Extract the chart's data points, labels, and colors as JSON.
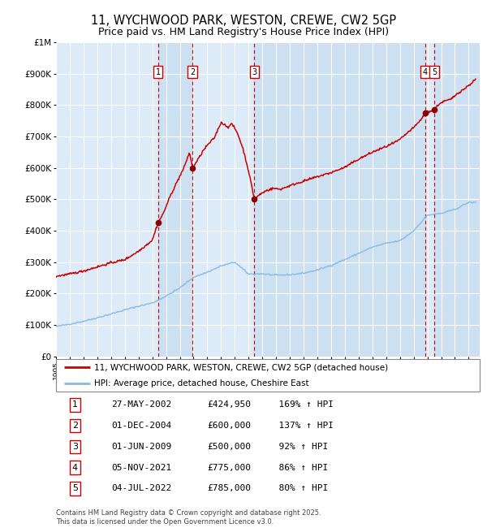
{
  "title": "11, WYCHWOOD PARK, WESTON, CREWE, CW2 5GP",
  "subtitle": "Price paid vs. HM Land Registry's House Price Index (HPI)",
  "title_fontsize": 10.5,
  "subtitle_fontsize": 9,
  "bg_color": "#ddeaf7",
  "grid_color": "#ffffff",
  "hpi_color": "#88bbdd",
  "price_color": "#cc0000",
  "sale_marker_color": "#880000",
  "xmin": 1995.0,
  "xmax": 2025.8,
  "ymin": 0,
  "ymax": 1000000,
  "yticks": [
    0,
    100000,
    200000,
    300000,
    400000,
    500000,
    600000,
    700000,
    800000,
    900000,
    1000000
  ],
  "ytick_labels": [
    "£0",
    "£100K",
    "£200K",
    "£300K",
    "£400K",
    "£500K",
    "£600K",
    "£700K",
    "£800K",
    "£900K",
    "£1M"
  ],
  "xticks": [
    1995,
    1996,
    1997,
    1998,
    1999,
    2000,
    2001,
    2002,
    2003,
    2004,
    2005,
    2006,
    2007,
    2008,
    2009,
    2010,
    2011,
    2012,
    2013,
    2014,
    2015,
    2016,
    2017,
    2018,
    2019,
    2020,
    2021,
    2022,
    2023,
    2024,
    2025
  ],
  "sale_events": [
    {
      "num": 1,
      "year": 2002.41,
      "price": 424950
    },
    {
      "num": 2,
      "year": 2004.92,
      "price": 600000
    },
    {
      "num": 3,
      "year": 2009.42,
      "price": 500000
    },
    {
      "num": 4,
      "year": 2021.85,
      "price": 775000
    },
    {
      "num": 5,
      "year": 2022.5,
      "price": 785000
    }
  ],
  "legend_line1": "11, WYCHWOOD PARK, WESTON, CREWE, CW2 5GP (detached house)",
  "legend_line2": "HPI: Average price, detached house, Cheshire East",
  "table_entries": [
    {
      "num": "1",
      "date": "27-MAY-2002",
      "price": "£424,950",
      "hpi": "169% ↑ HPI"
    },
    {
      "num": "2",
      "date": "01-DEC-2004",
      "price": "£600,000",
      "hpi": "137% ↑ HPI"
    },
    {
      "num": "3",
      "date": "01-JUN-2009",
      "price": "£500,000",
      "hpi": "92% ↑ HPI"
    },
    {
      "num": "4",
      "date": "05-NOV-2021",
      "price": "£775,000",
      "hpi": "86% ↑ HPI"
    },
    {
      "num": "5",
      "date": "04-JUL-2022",
      "price": "£785,000",
      "hpi": "80% ↑ HPI"
    }
  ],
  "footnote": "Contains HM Land Registry data © Crown copyright and database right 2025.\nThis data is licensed under the Open Government Licence v3.0."
}
